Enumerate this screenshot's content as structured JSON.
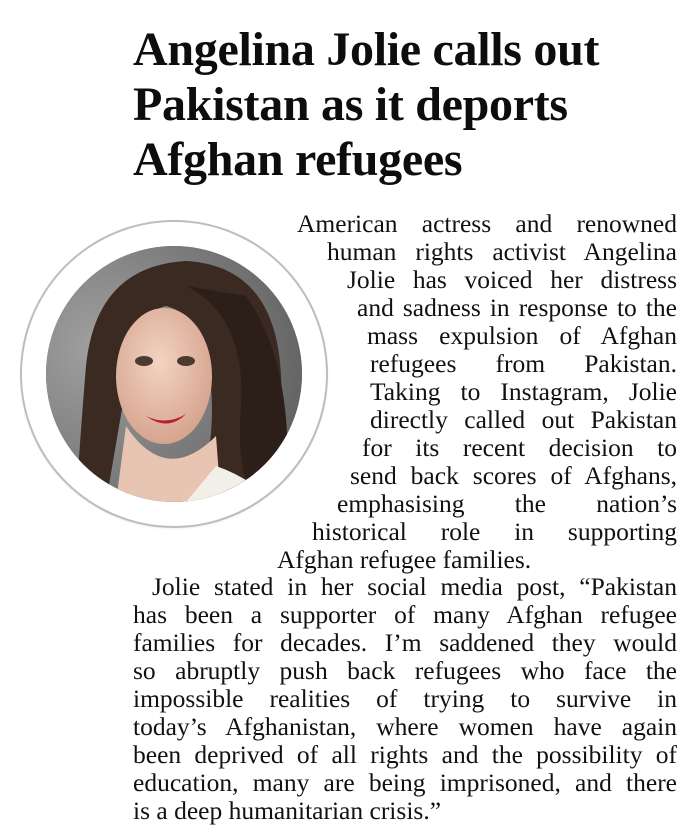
{
  "article": {
    "headline": [
      "Angelina Jolie calls out",
      "Pakistan as it deports",
      "Afghan refugees"
    ],
    "photo_alt": "Angelina Jolie portrait",
    "paragraph1": [
      "American actress and renowned",
      "human rights activist Angelina",
      "Jolie has voiced her distress",
      "and sadness in response to the",
      "mass expulsion of Afghan",
      "refugees from Pakistan.",
      "Taking to Instagram, Jolie",
      "directly called out Pakistan",
      "for its recent decision to",
      "send back scores of Afghans,",
      "emphasising the nation’s",
      "historical role in supporting",
      "Afghan refugee families."
    ],
    "paragraph2": [
      "Jolie stated in her social media post, “Pakistan",
      "has been a supporter of many Afghan refugee",
      "families for decades. I’m saddened they would",
      "so abruptly push back refugees who face the",
      "impossible realities of trying to survive in",
      "today’s Afghanistan, where women have again",
      "been deprived of all rights and the possibility of",
      "education, many are being imprisoned, and there",
      "is a deep humanitarian crisis.”"
    ]
  }
}
